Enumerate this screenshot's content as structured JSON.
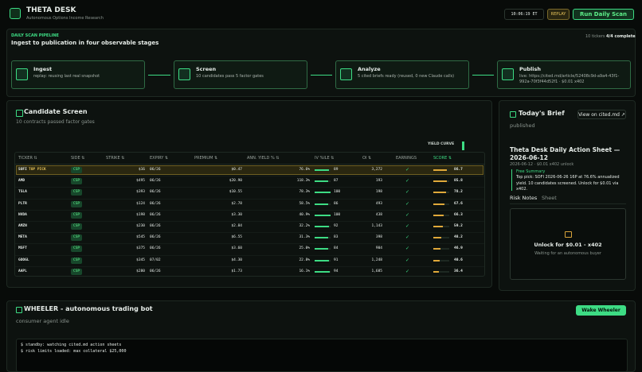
{
  "header": {
    "title": "THETA DESK",
    "subtitle": "Autonomous Options Income Research",
    "clock": "10:06:19 ET",
    "replay": "REPLAY",
    "run": "Run Daily Scan"
  },
  "pipeline": {
    "label": "DAILY SCAN PIPELINE",
    "title": "Ingest to publication in four observable stages",
    "tickers": "10 tickers",
    "status": "4/4 complete",
    "stages": [
      {
        "name": "Ingest",
        "detail": "replay: reusing last real snapshot"
      },
      {
        "name": "Screen",
        "detail": "10 candidates pass 5 factor gates"
      },
      {
        "name": "Analyze",
        "detail": "5 cited briefs ready (reused, 0 new Claude calls)"
      },
      {
        "name": "Publish",
        "detail": "live: https://cited.md/article/52408c9d-a9a4-43f1-992a-70f3f44d52f1 · $0.01 x402"
      }
    ]
  },
  "screen": {
    "title": "Candidate Screen",
    "subtitle": "10 contracts passed factor gates",
    "yield_curve": "YIELD CURVE",
    "columns": [
      "TICKER ⇅",
      "SIDE ⇅",
      "STRIKE ⇅",
      "EXPIRY ⇅",
      "PREMIUM ⇅",
      "ANN. YIELD % ⇅",
      "IV %ILE ⇅",
      "OI ⇅",
      "EARNINGS",
      "SCORE ⇅"
    ],
    "top_pick": "TOP PICK",
    "rows": [
      {
        "ticker": "SOFI",
        "side": "CSP",
        "strike": "$16",
        "expiry": "06/26",
        "premium": "$0.47",
        "yield": "76.6%",
        "iv": 89,
        "oi": "3,272",
        "earnings": "✓",
        "score": 86.7
      },
      {
        "ticker": "AMD",
        "side": "CSP",
        "strike": "$495",
        "expiry": "06/26",
        "premium": "$20.90",
        "yield": "118.3%",
        "iv": 87,
        "oi": "193",
        "earnings": "✓",
        "score": 85.8
      },
      {
        "ticker": "TSLA",
        "side": "CSP",
        "strike": "$393",
        "expiry": "06/26",
        "premium": "$10.55",
        "yield": "78.3%",
        "iv": 100,
        "oi": "198",
        "earnings": "✓",
        "score": 78.2
      },
      {
        "ticker": "PLTR",
        "side": "CSP",
        "strike": "$124",
        "expiry": "06/26",
        "premium": "$2.78",
        "yield": "58.5%",
        "iv": 86,
        "oi": "493",
        "earnings": "✓",
        "score": 67.6
      },
      {
        "ticker": "NVDA",
        "side": "CSP",
        "strike": "$198",
        "expiry": "06/26",
        "premium": "$3.30",
        "yield": "40.9%",
        "iv": 100,
        "oi": "438",
        "earnings": "✓",
        "score": 66.3
      },
      {
        "ticker": "AMZN",
        "side": "CSP",
        "strike": "$230",
        "expiry": "06/26",
        "premium": "$2.84",
        "yield": "32.2%",
        "iv": 92,
        "oi": "1,143",
        "earnings": "✓",
        "score": 59.2
      },
      {
        "ticker": "META",
        "side": "CSP",
        "strike": "$545",
        "expiry": "06/26",
        "premium": "$6.55",
        "yield": "31.3%",
        "iv": 83,
        "oi": "398",
        "earnings": "✓",
        "score": 48.2
      },
      {
        "ticker": "MSFT",
        "side": "CSP",
        "strike": "$375",
        "expiry": "06/26",
        "premium": "$3.60",
        "yield": "25.0%",
        "iv": 84,
        "oi": "904",
        "earnings": "✓",
        "score": 46.9
      },
      {
        "ticker": "GOOGL",
        "side": "CSP",
        "strike": "$345",
        "expiry": "07/02",
        "premium": "$4.30",
        "yield": "22.8%",
        "iv": 91,
        "oi": "1,248",
        "earnings": "✓",
        "score": 40.6
      },
      {
        "ticker": "AAPL",
        "side": "CSP",
        "strike": "$280",
        "expiry": "06/26",
        "premium": "$1.73",
        "yield": "16.1%",
        "iv": 94,
        "oi": "1,685",
        "earnings": "✓",
        "score": 36.4
      }
    ]
  },
  "brief": {
    "title": "Today's Brief",
    "link": "View on cited.md ↗",
    "status": "published",
    "sheet_title": "Theta Desk Daily Action Sheet — 2026-06-12",
    "meta": "2026-06-12 · $0.01 x402 unlock",
    "summary_label": "Free Summary",
    "summary": "Top pick: SOFI 2026-06-26 16P at 76.6% annualized yield. 10 candidates screened. Unlock for $0.01 via x402.",
    "tabs": [
      "Risk Notes",
      "Sheet"
    ],
    "unlock": "Unlock for $0.01 - x402",
    "waiting": "Waiting for an autonomous buyer"
  },
  "wheeler": {
    "title": "WHEELER - autonomous trading bot",
    "status": "consumer agent idle",
    "button": "Wake Wheeler",
    "log": [
      "$ standby: watching cited.md action sheets",
      "$ risk limits loaded: max collateral $25,000"
    ]
  }
}
